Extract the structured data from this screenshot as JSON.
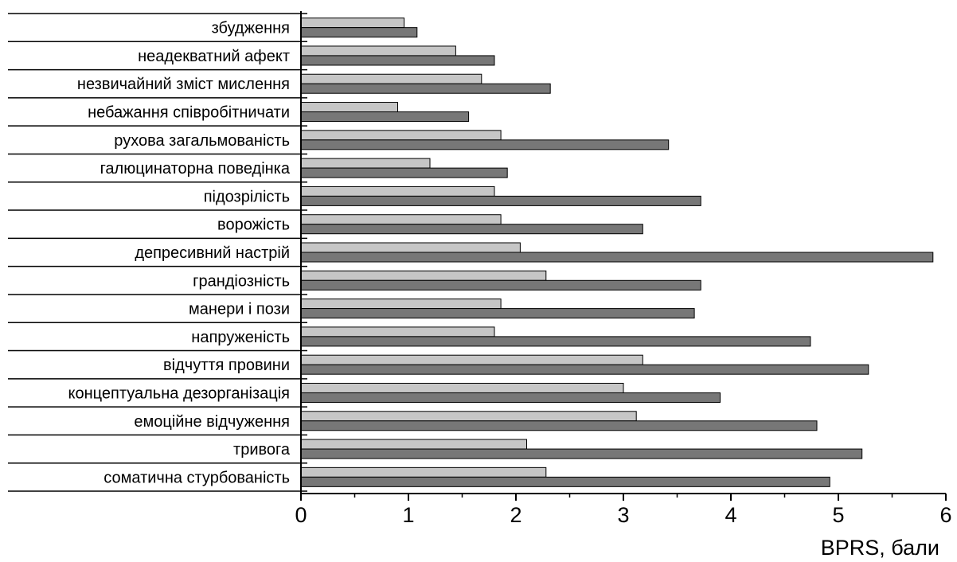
{
  "chart_data": {
    "type": "bar",
    "orientation": "horizontal",
    "xlabel": "BPRS, бали",
    "xlim": [
      0,
      6
    ],
    "xticks": [
      0,
      1,
      2,
      3,
      4,
      5,
      6
    ],
    "categories": [
      "збудження",
      "неадекватний афект",
      "незвичайний зміст мислення",
      "небажання співробітничати",
      "рухова загальмованість",
      "галюцинаторна поведінка",
      "підозрілість",
      "ворожість",
      "депресивний настрій",
      "грандіозність",
      "манери і пози",
      "напруженість",
      "відчуття провини",
      "концептуальна дезорганізація",
      "емоційне відчуження",
      "тривога",
      "соматична стурбованість"
    ],
    "series": [
      {
        "values": [
          0.96,
          1.44,
          1.68,
          0.9,
          1.86,
          1.2,
          1.8,
          1.86,
          2.04,
          2.28,
          1.86,
          1.8,
          3.18,
          3.0,
          3.12,
          2.1,
          2.28
        ]
      },
      {
        "values": [
          1.08,
          1.8,
          2.32,
          1.56,
          3.42,
          1.92,
          3.72,
          3.18,
          5.88,
          3.72,
          3.66,
          4.74,
          5.28,
          3.9,
          4.8,
          5.22,
          4.92
        ]
      }
    ],
    "colors": {
      "series1": "#c6c6c6",
      "series2": "#777777",
      "stroke": "#000000"
    },
    "grid": false,
    "legend": "none"
  }
}
